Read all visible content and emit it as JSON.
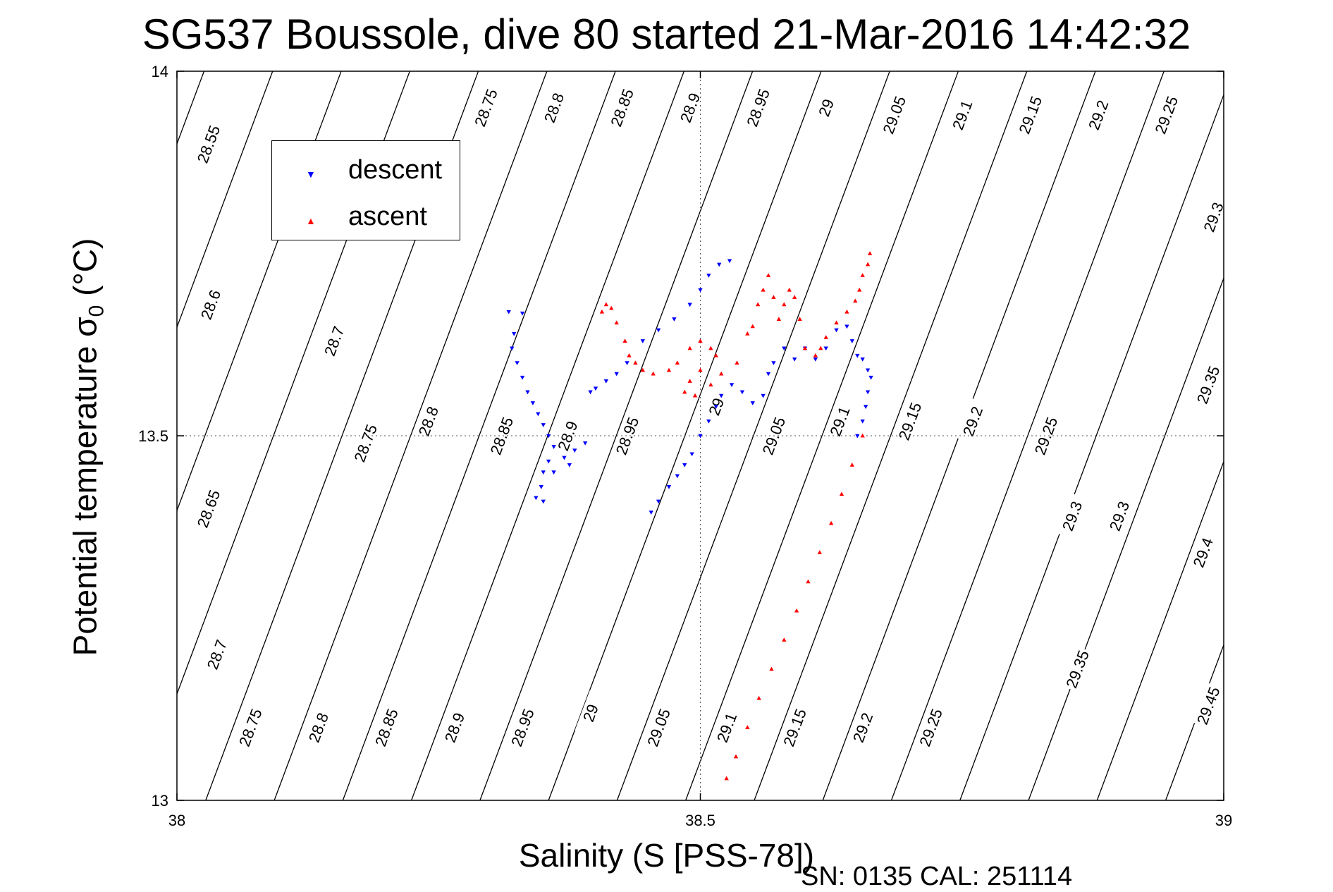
{
  "title": "SG537 Boussole, dive 80 started 21-Mar-2016 14:42:32",
  "footer": "SN: 0135  CAL: 251114",
  "colors": {
    "descent": "#0000ff",
    "ascent": "#ff0000",
    "axes": "#000000",
    "contour": "#000000"
  },
  "chart_data": {
    "type": "scatter",
    "title": "SG537 Boussole, dive 80 started 21-Mar-2016 14:42:32",
    "xlabel": "Salinity (S [PSS-78])",
    "ylabel": "Potential temperature σ0 (°C)",
    "xlim": [
      38,
      39
    ],
    "ylim": [
      13,
      14
    ],
    "xticks": [
      38,
      38.5,
      39
    ],
    "yticks": [
      13,
      13.5,
      14
    ],
    "grid": "dotted lines at x=38.5 and y=13.5",
    "legend": {
      "placement": "upper-left",
      "entries": [
        "descent",
        "ascent"
      ]
    },
    "density_contours": {
      "slope_degC_per_psu": 3.84,
      "upper_labels": [
        {
          "label": "28.55",
          "s": 38.03,
          "t": 13.9
        },
        {
          "label": "28.6",
          "s": 38.032,
          "t": 13.68
        },
        {
          "label": "28.65",
          "s": 38.03,
          "t": 13.4
        },
        {
          "label": "28.7",
          "s": 38.038,
          "t": 13.2
        },
        {
          "label": "28.7",
          "s": 38.15,
          "t": 13.63
        },
        {
          "label": "28.75",
          "s": 38.18,
          "t": 13.49
        },
        {
          "label": "28.8",
          "s": 38.24,
          "t": 13.52
        },
        {
          "label": "28.85",
          "s": 38.31,
          "t": 13.5
        },
        {
          "label": "28.9",
          "s": 38.373,
          "t": 13.5
        },
        {
          "label": "28.95",
          "s": 38.43,
          "t": 13.5
        },
        {
          "label": "29",
          "s": 38.515,
          "t": 13.54
        },
        {
          "label": "29.05",
          "s": 38.57,
          "t": 13.5
        },
        {
          "label": "29.1",
          "s": 38.633,
          "t": 13.52
        },
        {
          "label": "29.15",
          "s": 38.7,
          "t": 13.52
        },
        {
          "label": "29.2",
          "s": 38.76,
          "t": 13.52
        },
        {
          "label": "29.25",
          "s": 38.83,
          "t": 13.5
        },
        {
          "label": "29.3",
          "s": 38.9,
          "t": 13.39
        },
        {
          "label": "29.35",
          "s": 38.985,
          "t": 13.57
        },
        {
          "label": "28.75",
          "s": 38.295,
          "t": 13.95
        },
        {
          "label": "28.8",
          "s": 38.36,
          "t": 13.95
        },
        {
          "label": "28.85",
          "s": 38.425,
          "t": 13.95
        },
        {
          "label": "28.9",
          "s": 38.49,
          "t": 13.95
        },
        {
          "label": "28.95",
          "s": 38.555,
          "t": 13.95
        },
        {
          "label": "29",
          "s": 38.62,
          "t": 13.95
        },
        {
          "label": "29.05",
          "s": 38.685,
          "t": 13.94
        },
        {
          "label": "29.1",
          "s": 38.75,
          "t": 13.94
        },
        {
          "label": "29.15",
          "s": 38.815,
          "t": 13.94
        },
        {
          "label": "29.2",
          "s": 38.88,
          "t": 13.94
        },
        {
          "label": "29.25",
          "s": 38.945,
          "t": 13.94
        },
        {
          "label": "29.3",
          "s": 38.99,
          "t": 13.8
        }
      ],
      "lower_labels": [
        {
          "label": "28.75",
          "s": 38.07,
          "t": 13.1
        },
        {
          "label": "28.8",
          "s": 38.135,
          "t": 13.1
        },
        {
          "label": "28.85",
          "s": 38.2,
          "t": 13.1
        },
        {
          "label": "28.9",
          "s": 38.265,
          "t": 13.1
        },
        {
          "label": "28.95",
          "s": 38.33,
          "t": 13.1
        },
        {
          "label": "29",
          "s": 38.395,
          "t": 13.12
        },
        {
          "label": "29.05",
          "s": 38.46,
          "t": 13.1
        },
        {
          "label": "29.1",
          "s": 38.525,
          "t": 13.1
        },
        {
          "label": "29.15",
          "s": 38.59,
          "t": 13.1
        },
        {
          "label": "29.2",
          "s": 38.655,
          "t": 13.1
        },
        {
          "label": "29.25",
          "s": 38.72,
          "t": 13.1
        },
        {
          "label": "29.3",
          "s": 38.855,
          "t": 13.39
        },
        {
          "label": "29.35",
          "s": 38.86,
          "t": 13.18
        },
        {
          "label": "29.4",
          "s": 38.98,
          "t": 13.34
        },
        {
          "label": "29.45",
          "s": 38.985,
          "t": 13.13
        }
      ]
    },
    "series": [
      {
        "name": "descent",
        "marker": "triangle-down",
        "color": "#0000ff",
        "points": [
          [
            38.528,
            13.74
          ],
          [
            38.518,
            13.735
          ],
          [
            38.508,
            13.72
          ],
          [
            38.5,
            13.7
          ],
          [
            38.49,
            13.68
          ],
          [
            38.475,
            13.66
          ],
          [
            38.46,
            13.645
          ],
          [
            38.445,
            13.63
          ],
          [
            38.43,
            13.6
          ],
          [
            38.42,
            13.585
          ],
          [
            38.41,
            13.575
          ],
          [
            38.4,
            13.565
          ],
          [
            38.395,
            13.56
          ],
          [
            38.317,
            13.67
          ],
          [
            38.33,
            13.668
          ],
          [
            38.322,
            13.64
          ],
          [
            38.32,
            13.62
          ],
          [
            38.325,
            13.6
          ],
          [
            38.33,
            13.58
          ],
          [
            38.335,
            13.56
          ],
          [
            38.34,
            13.545
          ],
          [
            38.345,
            13.53
          ],
          [
            38.35,
            13.515
          ],
          [
            38.355,
            13.5
          ],
          [
            38.36,
            13.485
          ],
          [
            38.355,
            13.465
          ],
          [
            38.35,
            13.45
          ],
          [
            38.348,
            13.43
          ],
          [
            38.343,
            13.415
          ],
          [
            38.35,
            13.41
          ],
          [
            38.36,
            13.45
          ],
          [
            38.37,
            13.47
          ],
          [
            38.375,
            13.46
          ],
          [
            38.38,
            13.48
          ],
          [
            38.39,
            13.49
          ],
          [
            38.453,
            13.395
          ],
          [
            38.46,
            13.41
          ],
          [
            38.47,
            13.43
          ],
          [
            38.478,
            13.445
          ],
          [
            38.485,
            13.46
          ],
          [
            38.492,
            13.475
          ],
          [
            38.5,
            13.5
          ],
          [
            38.508,
            13.52
          ],
          [
            38.515,
            13.54
          ],
          [
            38.52,
            13.555
          ],
          [
            38.53,
            13.57
          ],
          [
            38.54,
            13.56
          ],
          [
            38.55,
            13.545
          ],
          [
            38.56,
            13.555
          ],
          [
            38.565,
            13.585
          ],
          [
            38.57,
            13.6
          ],
          [
            38.58,
            13.62
          ],
          [
            38.59,
            13.605
          ],
          [
            38.6,
            13.62
          ],
          [
            38.61,
            13.605
          ],
          [
            38.62,
            13.62
          ],
          [
            38.63,
            13.645
          ],
          [
            38.64,
            13.65
          ],
          [
            38.645,
            13.63
          ],
          [
            38.65,
            13.61
          ],
          [
            38.655,
            13.605
          ],
          [
            38.66,
            13.59
          ],
          [
            38.663,
            13.58
          ],
          [
            38.66,
            13.56
          ],
          [
            38.658,
            13.54
          ],
          [
            38.655,
            13.52
          ],
          [
            38.65,
            13.5
          ]
        ]
      },
      {
        "name": "ascent",
        "marker": "triangle-up",
        "color": "#ff0000",
        "points": [
          [
            38.406,
            13.67
          ],
          [
            38.41,
            13.68
          ],
          [
            38.415,
            13.675
          ],
          [
            38.42,
            13.655
          ],
          [
            38.428,
            13.63
          ],
          [
            38.432,
            13.61
          ],
          [
            38.438,
            13.6
          ],
          [
            38.445,
            13.59
          ],
          [
            38.455,
            13.585
          ],
          [
            38.47,
            13.59
          ],
          [
            38.478,
            13.6
          ],
          [
            38.49,
            13.62
          ],
          [
            38.5,
            13.63
          ],
          [
            38.51,
            13.62
          ],
          [
            38.515,
            13.61
          ],
          [
            38.5,
            13.59
          ],
          [
            38.49,
            13.575
          ],
          [
            38.485,
            13.56
          ],
          [
            38.495,
            13.555
          ],
          [
            38.51,
            13.57
          ],
          [
            38.52,
            13.585
          ],
          [
            38.535,
            13.6
          ],
          [
            38.545,
            13.64
          ],
          [
            38.55,
            13.65
          ],
          [
            38.555,
            13.68
          ],
          [
            38.56,
            13.7
          ],
          [
            38.565,
            13.72
          ],
          [
            38.57,
            13.69
          ],
          [
            38.575,
            13.66
          ],
          [
            38.58,
            13.68
          ],
          [
            38.585,
            13.7
          ],
          [
            38.59,
            13.69
          ],
          [
            38.595,
            13.66
          ],
          [
            38.6,
            13.62
          ],
          [
            38.61,
            13.61
          ],
          [
            38.615,
            13.62
          ],
          [
            38.62,
            13.635
          ],
          [
            38.63,
            13.655
          ],
          [
            38.64,
            13.67
          ],
          [
            38.648,
            13.685
          ],
          [
            38.652,
            13.7
          ],
          [
            38.655,
            13.72
          ],
          [
            38.66,
            13.735
          ],
          [
            38.662,
            13.75
          ],
          [
            38.655,
            13.5
          ],
          [
            38.645,
            13.46
          ],
          [
            38.635,
            13.42
          ],
          [
            38.625,
            13.38
          ],
          [
            38.614,
            13.34
          ],
          [
            38.603,
            13.3
          ],
          [
            38.592,
            13.26
          ],
          [
            38.58,
            13.22
          ],
          [
            38.568,
            13.18
          ],
          [
            38.556,
            13.14
          ],
          [
            38.545,
            13.1
          ],
          [
            38.534,
            13.06
          ],
          [
            38.525,
            13.03
          ]
        ]
      }
    ]
  },
  "axes": {
    "x_ticks": [
      "38",
      "38.5",
      "39"
    ],
    "y_ticks": [
      "14",
      "13.5",
      "13"
    ]
  },
  "legend": {
    "descent": "descent",
    "ascent": "ascent"
  }
}
